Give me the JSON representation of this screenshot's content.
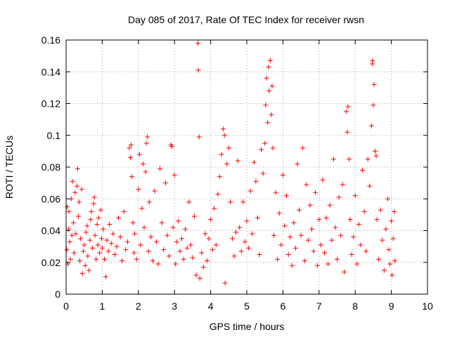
{
  "chart_data": {
    "type": "scatter",
    "title": "Day 085 of 2017, Rate Of TEC Index for receiver rwsn",
    "xlabel": "GPS time / hours",
    "ylabel": "ROTI / TECUs",
    "xlim": [
      0,
      10
    ],
    "ylim": [
      0,
      0.16
    ],
    "x_ticks": [
      "0",
      "1",
      "2",
      "3",
      "4",
      "5",
      "6",
      "7",
      "8",
      "9",
      "10"
    ],
    "y_ticks": [
      "0",
      "0.02",
      "0.04",
      "0.06",
      "0.08",
      "0.1",
      "0.12",
      "0.14",
      "0.16"
    ],
    "grid": true,
    "marker": "+",
    "color": "#ff0000",
    "series": [
      {
        "name": "ROTI",
        "points": [
          [
            0.02,
            0.028
          ],
          [
            0.03,
            0.055
          ],
          [
            0.05,
            0.019
          ],
          [
            0.07,
            0.041
          ],
          [
            0.08,
            0.052
          ],
          [
            0.1,
            0.033
          ],
          [
            0.12,
            0.022
          ],
          [
            0.14,
            0.06
          ],
          [
            0.16,
            0.037
          ],
          [
            0.18,
            0.071
          ],
          [
            0.2,
            0.045
          ],
          [
            0.22,
            0.026
          ],
          [
            0.25,
            0.064
          ],
          [
            0.27,
            0.038
          ],
          [
            0.3,
            0.068
          ],
          [
            0.32,
            0.079
          ],
          [
            0.34,
            0.049
          ],
          [
            0.36,
            0.058
          ],
          [
            0.38,
            0.021
          ],
          [
            0.4,
            0.035
          ],
          [
            0.43,
            0.066
          ],
          [
            0.45,
            0.013
          ],
          [
            0.48,
            0.027
          ],
          [
            0.5,
            0.031
          ],
          [
            0.53,
            0.018
          ],
          [
            0.55,
            0.039
          ],
          [
            0.58,
            0.043
          ],
          [
            0.6,
            0.024
          ],
          [
            0.63,
            0.015
          ],
          [
            0.66,
            0.034
          ],
          [
            0.68,
            0.047
          ],
          [
            0.7,
            0.052
          ],
          [
            0.73,
            0.029
          ],
          [
            0.76,
            0.057
          ],
          [
            0.78,
            0.061
          ],
          [
            0.8,
            0.037
          ],
          [
            0.83,
            0.022
          ],
          [
            0.86,
            0.044
          ],
          [
            0.88,
            0.031
          ],
          [
            0.9,
            0.048
          ],
          [
            0.93,
            0.026
          ],
          [
            0.96,
            0.053
          ],
          [
            0.98,
            0.035
          ],
          [
            1.0,
            0.029
          ],
          [
            1.03,
            0.041
          ],
          [
            1.06,
            0.022
          ],
          [
            1.1,
            0.011
          ],
          [
            1.13,
            0.034
          ],
          [
            1.17,
            0.027
          ],
          [
            1.2,
            0.044
          ],
          [
            1.25,
            0.032
          ],
          [
            1.3,
            0.038
          ],
          [
            1.35,
            0.025
          ],
          [
            1.4,
            0.03
          ],
          [
            1.45,
            0.048
          ],
          [
            1.5,
            0.036
          ],
          [
            1.55,
            0.021
          ],
          [
            1.6,
            0.052
          ],
          [
            1.65,
            0.028
          ],
          [
            1.7,
            0.033
          ],
          [
            1.75,
            0.092
          ],
          [
            1.78,
            0.086
          ],
          [
            1.8,
            0.094
          ],
          [
            1.82,
            0.074
          ],
          [
            1.85,
            0.045
          ],
          [
            1.88,
            0.026
          ],
          [
            1.9,
            0.038
          ],
          [
            1.95,
            0.022
          ],
          [
            2.0,
            0.066
          ],
          [
            2.03,
            0.088
          ],
          [
            2.06,
            0.031
          ],
          [
            2.1,
            0.054
          ],
          [
            2.13,
            0.082
          ],
          [
            2.16,
            0.042
          ],
          [
            2.2,
            0.077
          ],
          [
            2.22,
            0.095
          ],
          [
            2.25,
            0.099
          ],
          [
            2.28,
            0.027
          ],
          [
            2.3,
            0.058
          ],
          [
            2.35,
            0.036
          ],
          [
            2.4,
            0.021
          ],
          [
            2.45,
            0.065
          ],
          [
            2.5,
            0.033
          ],
          [
            2.55,
            0.019
          ],
          [
            2.6,
            0.079
          ],
          [
            2.65,
            0.045
          ],
          [
            2.7,
            0.028
          ],
          [
            2.75,
            0.07
          ],
          [
            2.8,
            0.037
          ],
          [
            2.85,
            0.024
          ],
          [
            2.9,
            0.094
          ],
          [
            2.93,
            0.093
          ],
          [
            2.96,
            0.042
          ],
          [
            3.0,
            0.075
          ],
          [
            3.03,
            0.019
          ],
          [
            3.06,
            0.033
          ],
          [
            3.1,
            0.046
          ],
          [
            3.15,
            0.027
          ],
          [
            3.2,
            0.035
          ],
          [
            3.25,
            0.022
          ],
          [
            3.3,
            0.041
          ],
          [
            3.35,
            0.029
          ],
          [
            3.4,
            0.058
          ],
          [
            3.45,
            0.031
          ],
          [
            3.5,
            0.023
          ],
          [
            3.55,
            0.049
          ],
          [
            3.6,
            0.012
          ],
          [
            3.65,
            0.158
          ],
          [
            3.66,
            0.141
          ],
          [
            3.68,
            0.099
          ],
          [
            3.7,
            0.01
          ],
          [
            3.75,
            0.026
          ],
          [
            3.8,
            0.017
          ],
          [
            3.85,
            0.038
          ],
          [
            3.9,
            0.021
          ],
          [
            3.95,
            0.035
          ],
          [
            4.0,
            0.047
          ],
          [
            4.05,
            0.028
          ],
          [
            4.1,
            0.054
          ],
          [
            4.15,
            0.031
          ],
          [
            4.2,
            0.063
          ],
          [
            4.25,
            0.074
          ],
          [
            4.3,
            0.088
          ],
          [
            4.35,
            0.104
          ],
          [
            4.38,
            0.1
          ],
          [
            4.4,
            0.007
          ],
          [
            4.45,
            0.082
          ],
          [
            4.5,
            0.092
          ],
          [
            4.55,
            0.058
          ],
          [
            4.6,
            0.035
          ],
          [
            4.65,
            0.024
          ],
          [
            4.7,
            0.039
          ],
          [
            4.75,
            0.084
          ],
          [
            4.8,
            0.042
          ],
          [
            4.85,
            0.027
          ],
          [
            4.9,
            0.058
          ],
          [
            4.95,
            0.033
          ],
          [
            5.0,
            0.046
          ],
          [
            5.05,
            0.029
          ],
          [
            5.1,
            0.065
          ],
          [
            5.15,
            0.038
          ],
          [
            5.2,
            0.083
          ],
          [
            5.25,
            0.071
          ],
          [
            5.3,
            0.048
          ],
          [
            5.35,
            0.025
          ],
          [
            5.4,
            0.091
          ],
          [
            5.45,
            0.076
          ],
          [
            5.5,
            0.095
          ],
          [
            5.52,
            0.119
          ],
          [
            5.55,
            0.136
          ],
          [
            5.58,
            0.108
          ],
          [
            5.6,
            0.143
          ],
          [
            5.62,
            0.128
          ],
          [
            5.65,
            0.147
          ],
          [
            5.68,
            0.113
          ],
          [
            5.7,
            0.131
          ],
          [
            5.72,
            0.092
          ],
          [
            5.75,
            0.037
          ],
          [
            5.8,
            0.064
          ],
          [
            5.85,
            0.022
          ],
          [
            5.9,
            0.051
          ],
          [
            5.95,
            0.031
          ],
          [
            6.0,
            0.075
          ],
          [
            6.05,
            0.043
          ],
          [
            6.1,
            0.062
          ],
          [
            6.15,
            0.025
          ],
          [
            6.2,
            0.036
          ],
          [
            6.25,
            0.018
          ],
          [
            6.3,
            0.045
          ],
          [
            6.35,
            0.029
          ],
          [
            6.4,
            0.082
          ],
          [
            6.45,
            0.053
          ],
          [
            6.5,
            0.037
          ],
          [
            6.55,
            0.092
          ],
          [
            6.6,
            0.021
          ],
          [
            6.65,
            0.069
          ],
          [
            6.7,
            0.034
          ],
          [
            6.75,
            0.056
          ],
          [
            6.8,
            0.041
          ],
          [
            6.85,
            0.027
          ],
          [
            6.9,
            0.064
          ],
          [
            6.95,
            0.018
          ],
          [
            7.0,
            0.047
          ],
          [
            7.05,
            0.031
          ],
          [
            7.1,
            0.072
          ],
          [
            7.15,
            0.026
          ],
          [
            7.2,
            0.048
          ],
          [
            7.25,
            0.019
          ],
          [
            7.3,
            0.056
          ],
          [
            7.35,
            0.034
          ],
          [
            7.4,
            0.085
          ],
          [
            7.45,
            0.042
          ],
          [
            7.5,
            0.022
          ],
          [
            7.55,
            0.061
          ],
          [
            7.6,
            0.037
          ],
          [
            7.65,
            0.069
          ],
          [
            7.7,
            0.014
          ],
          [
            7.75,
            0.115
          ],
          [
            7.78,
            0.102
          ],
          [
            7.8,
            0.118
          ],
          [
            7.83,
            0.085
          ],
          [
            7.86,
            0.047
          ],
          [
            7.9,
            0.025
          ],
          [
            7.95,
            0.036
          ],
          [
            8.0,
            0.062
          ],
          [
            8.05,
            0.019
          ],
          [
            8.1,
            0.044
          ],
          [
            8.15,
            0.031
          ],
          [
            8.2,
            0.078
          ],
          [
            8.25,
            0.052
          ],
          [
            8.3,
            0.027
          ],
          [
            8.35,
            0.085
          ],
          [
            8.4,
            0.068
          ],
          [
            8.45,
            0.106
          ],
          [
            8.47,
            0.145
          ],
          [
            8.48,
            0.147
          ],
          [
            8.5,
            0.119
          ],
          [
            8.52,
            0.132
          ],
          [
            8.55,
            0.09
          ],
          [
            8.58,
            0.087
          ],
          [
            8.6,
            0.047
          ],
          [
            8.65,
            0.022
          ],
          [
            8.7,
            0.053
          ],
          [
            8.75,
            0.034
          ],
          [
            8.8,
            0.015
          ],
          [
            8.85,
            0.041
          ],
          [
            8.9,
            0.06
          ],
          [
            8.93,
            0.028
          ],
          [
            8.96,
            0.019
          ],
          [
            9.0,
            0.046
          ],
          [
            9.02,
            0.012
          ],
          [
            9.05,
            0.035
          ],
          [
            9.08,
            0.052
          ],
          [
            9.1,
            0.021
          ]
        ]
      }
    ]
  }
}
